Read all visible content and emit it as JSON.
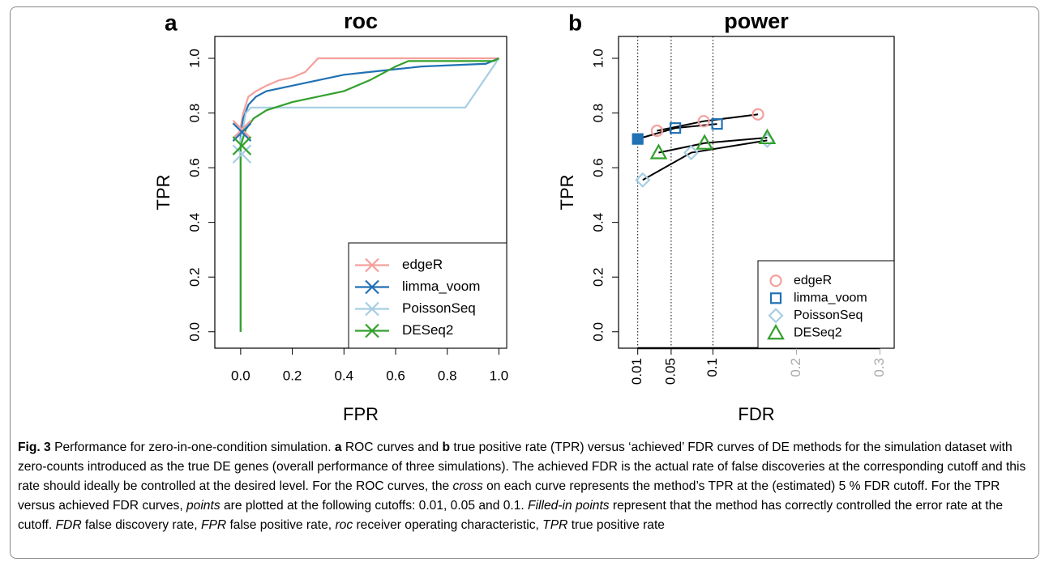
{
  "chart_data": [
    {
      "type": "line",
      "panel_label": "a",
      "title": "roc",
      "xlabel": "FPR",
      "ylabel": "TPR",
      "xlim": [
        -0.1,
        1.03
      ],
      "ylim": [
        -0.06,
        1.08
      ],
      "xticks": [
        {
          "value": 0,
          "label": "0.0"
        },
        0.2,
        0.4,
        0.6,
        0.8,
        {
          "value": 1,
          "label": "1.0"
        }
      ],
      "yticks": [
        {
          "value": 0,
          "label": "0.0"
        },
        0.2,
        0.4,
        0.6,
        0.8,
        {
          "value": 1,
          "label": "1.0"
        }
      ],
      "legend": "bottom-right",
      "series": [
        {
          "name": "edgeR",
          "color": "#f4a09c",
          "x": [
            0,
            0,
            0.01,
            0.03,
            0.06,
            0.1,
            0.15,
            0.2,
            0.25,
            0.28,
            0.3,
            1
          ],
          "values": [
            0,
            0.75,
            0.8,
            0.86,
            0.88,
            0.9,
            0.92,
            0.93,
            0.95,
            0.98,
            1,
            1
          ],
          "cross_x": 0.005,
          "cross_y": 0.74
        },
        {
          "name": "limma_voom",
          "color": "#2171b5",
          "x": [
            0,
            0,
            0.01,
            0.03,
            0.06,
            0.1,
            0.2,
            0.3,
            0.4,
            0.5,
            0.6,
            0.7,
            0.95,
            1
          ],
          "values": [
            0,
            0.72,
            0.78,
            0.83,
            0.86,
            0.88,
            0.9,
            0.92,
            0.94,
            0.95,
            0.96,
            0.97,
            0.98,
            1
          ],
          "cross_x": 0.005,
          "cross_y": 0.73
        },
        {
          "name": "PoissonSeq",
          "color": "#a6cee3",
          "x": [
            0,
            0,
            0.02,
            0.04,
            0.87,
            1
          ],
          "values": [
            0,
            0.7,
            0.8,
            0.82,
            0.82,
            1
          ],
          "cross_x": 0.005,
          "cross_y": 0.65
        },
        {
          "name": "DESeq2",
          "color": "#33a02c",
          "x": [
            0,
            0,
            0.02,
            0.05,
            0.1,
            0.2,
            0.3,
            0.4,
            0.5,
            0.6,
            0.65,
            0.98,
            1
          ],
          "values": [
            0,
            0.68,
            0.74,
            0.78,
            0.81,
            0.84,
            0.86,
            0.88,
            0.92,
            0.97,
            0.99,
            0.99,
            1
          ],
          "cross_x": 0.005,
          "cross_y": 0.68
        }
      ]
    },
    {
      "type": "scatter",
      "panel_label": "b",
      "title": "power",
      "xlabel": "FDR",
      "ylabel": "TPR",
      "xlim": [
        -0.013,
        0.317
      ],
      "ylim": [
        -0.06,
        1.08
      ],
      "xticks": [
        0.01,
        0.05,
        0.1,
        0.2,
        0.3
      ],
      "xtick_colors": [
        "#000000",
        "#000000",
        "#000000",
        "#aaaaaa",
        "#aaaaaa"
      ],
      "vlines": [
        0.01,
        0.05,
        0.1
      ],
      "yticks": [
        {
          "value": 0,
          "label": "0.0"
        },
        0.2,
        0.4,
        0.6,
        0.8,
        {
          "value": 1,
          "label": "1.0"
        }
      ],
      "legend": "bottom-right",
      "series": [
        {
          "name": "edgeR",
          "color": "#f4a09c",
          "marker": "circle",
          "x": [
            0.033,
            0.089,
            0.154
          ],
          "values": [
            0.735,
            0.77,
            0.795
          ],
          "filled": [
            false,
            false,
            false
          ]
        },
        {
          "name": "limma_voom",
          "color": "#2171b5",
          "marker": "square",
          "x": [
            0.01,
            0.055,
            0.105
          ],
          "values": [
            0.705,
            0.745,
            0.76
          ],
          "filled": [
            true,
            false,
            false
          ]
        },
        {
          "name": "PoissonSeq",
          "color": "#a6cee3",
          "marker": "diamond",
          "x": [
            0.016,
            0.074,
            0.165
          ],
          "values": [
            0.555,
            0.655,
            0.7
          ],
          "filled": [
            false,
            false,
            false
          ]
        },
        {
          "name": "DESeq2",
          "color": "#33a02c",
          "marker": "triangle",
          "x": [
            0.035,
            0.09,
            0.165
          ],
          "values": [
            0.655,
            0.69,
            0.71
          ],
          "filled": [
            false,
            false,
            false
          ]
        }
      ]
    }
  ],
  "caption": [
    {
      "text": "Fig. 3",
      "style": "bold"
    },
    {
      "text": " Performance for zero-in-one-condition simulation. "
    },
    {
      "text": "a",
      "style": "bold"
    },
    {
      "text": " ROC curves and "
    },
    {
      "text": "b",
      "style": "bold"
    },
    {
      "text": " true positive rate (TPR) versus ‘achieved’ FDR curves of DE methods for the simulation dataset with zero-counts introduced as the true DE genes (overall performance of three simulations). The achieved FDR is the actual rate of false discoveries at the corresponding cutoff and this rate should ideally be controlled at the desired level. For the ROC curves, the "
    },
    {
      "text": "cross",
      "style": "italic"
    },
    {
      "text": " on each curve represents the method’s TPR at the (estimated) 5 % FDR cutoff. For the TPR versus achieved FDR curves, "
    },
    {
      "text": "points",
      "style": "italic"
    },
    {
      "text": " are plotted at the following cutoffs: 0.01, 0.05 and 0.1. "
    },
    {
      "text": "Filled-in points",
      "style": "italic"
    },
    {
      "text": " represent that the method has correctly controlled the error rate at the cutoff. "
    },
    {
      "text": "FDR",
      "style": "italic"
    },
    {
      "text": " false discovery rate, "
    },
    {
      "text": "FPR",
      "style": "italic"
    },
    {
      "text": " false positive rate, "
    },
    {
      "text": "roc",
      "style": "italic"
    },
    {
      "text": " receiver operating characteristic, "
    },
    {
      "text": "TPR",
      "style": "italic"
    },
    {
      "text": " true positive rate"
    }
  ]
}
